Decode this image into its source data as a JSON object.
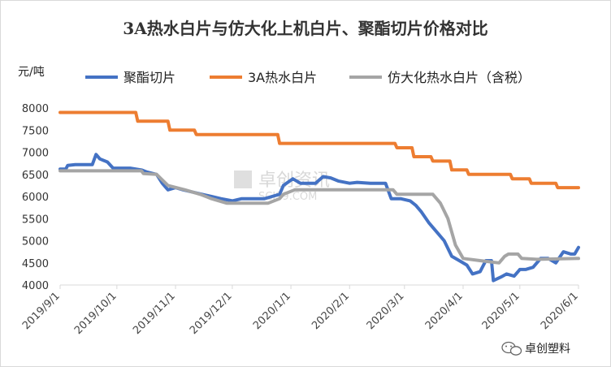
{
  "chart_data": {
    "type": "line",
    "title": "3A热水白片与仿大化上机白片、聚酯切片价格对比",
    "ylabel": "元/吨",
    "ylim": [
      4000,
      8000
    ],
    "yticks": [
      "8000",
      "7500",
      "7000",
      "6500",
      "6000",
      "5500",
      "5000",
      "4500",
      "4000"
    ],
    "xlim": [
      "2019-09-01",
      "2020-06-01"
    ],
    "xticks": [
      "2019/9/1",
      "2019/10/1",
      "2019/11/1",
      "2019/12/1",
      "2020/1/1",
      "2020/2/1",
      "2020/3/1",
      "2020/4/1",
      "2020/5/1",
      "2020/6/1"
    ],
    "grid": false,
    "legend": "top",
    "series": [
      {
        "name": "聚酯切片",
        "color": "#4472C4",
        "points": [
          [
            "2019-09-01",
            6620
          ],
          [
            "2019-09-04",
            6620
          ],
          [
            "2019-09-05",
            6700
          ],
          [
            "2019-09-09",
            6720
          ],
          [
            "2019-09-18",
            6720
          ],
          [
            "2019-09-20",
            6950
          ],
          [
            "2019-09-22",
            6850
          ],
          [
            "2019-09-26",
            6780
          ],
          [
            "2019-09-29",
            6640
          ],
          [
            "2019-10-08",
            6640
          ],
          [
            "2019-10-14",
            6600
          ],
          [
            "2019-10-17",
            6550
          ],
          [
            "2019-10-22",
            6500
          ],
          [
            "2019-10-25",
            6300
          ],
          [
            "2019-10-28",
            6150
          ],
          [
            "2019-11-01",
            6200
          ],
          [
            "2019-11-05",
            6150
          ],
          [
            "2019-11-10",
            6100
          ],
          [
            "2019-11-15",
            6050
          ],
          [
            "2019-11-20",
            6000
          ],
          [
            "2019-11-25",
            5950
          ],
          [
            "2019-12-01",
            5900
          ],
          [
            "2019-12-06",
            5950
          ],
          [
            "2019-12-10",
            5950
          ],
          [
            "2019-12-18",
            5950
          ],
          [
            "2019-12-22",
            6000
          ],
          [
            "2019-12-26",
            6050
          ],
          [
            "2019-12-28",
            6250
          ],
          [
            "2020-01-02",
            6400
          ],
          [
            "2020-01-06",
            6300
          ],
          [
            "2020-01-14",
            6300
          ],
          [
            "2020-01-18",
            6450
          ],
          [
            "2020-01-22",
            6420
          ],
          [
            "2020-01-26",
            6350
          ],
          [
            "2020-02-01",
            6300
          ],
          [
            "2020-02-05",
            6320
          ],
          [
            "2020-02-12",
            6300
          ],
          [
            "2020-02-20",
            6300
          ],
          [
            "2020-02-23",
            5950
          ],
          [
            "2020-02-28",
            5950
          ],
          [
            "2020-03-04",
            5900
          ],
          [
            "2020-03-07",
            5800
          ],
          [
            "2020-03-10",
            5650
          ],
          [
            "2020-03-14",
            5400
          ],
          [
            "2020-03-18",
            5200
          ],
          [
            "2020-03-22",
            5000
          ],
          [
            "2020-03-26",
            4650
          ],
          [
            "2020-03-30",
            4550
          ],
          [
            "2020-04-03",
            4450
          ],
          [
            "2020-04-06",
            4250
          ],
          [
            "2020-04-10",
            4300
          ],
          [
            "2020-04-13",
            4550
          ],
          [
            "2020-04-16",
            4550
          ],
          [
            "2020-04-17",
            4100
          ],
          [
            "2020-04-21",
            4180
          ],
          [
            "2020-04-24",
            4250
          ],
          [
            "2020-04-28",
            4200
          ],
          [
            "2020-05-01",
            4350
          ],
          [
            "2020-05-04",
            4350
          ],
          [
            "2020-05-08",
            4400
          ],
          [
            "2020-05-12",
            4600
          ],
          [
            "2020-05-16",
            4600
          ],
          [
            "2020-05-20",
            4500
          ],
          [
            "2020-05-24",
            4750
          ],
          [
            "2020-05-28",
            4700
          ],
          [
            "2020-05-30",
            4700
          ],
          [
            "2020-06-01",
            4850
          ]
        ]
      },
      {
        "name": "3A热水白片",
        "color": "#ED7D31",
        "points": [
          [
            "2019-09-01",
            7900
          ],
          [
            "2019-10-11",
            7900
          ],
          [
            "2019-10-12",
            7700
          ],
          [
            "2019-10-28",
            7700
          ],
          [
            "2019-10-29",
            7500
          ],
          [
            "2019-11-11",
            7500
          ],
          [
            "2019-11-12",
            7400
          ],
          [
            "2019-12-25",
            7400
          ],
          [
            "2019-12-26",
            7200
          ],
          [
            "2020-02-25",
            7200
          ],
          [
            "2020-02-26",
            7100
          ],
          [
            "2020-03-05",
            7100
          ],
          [
            "2020-03-06",
            6900
          ],
          [
            "2020-03-15",
            6900
          ],
          [
            "2020-03-16",
            6800
          ],
          [
            "2020-03-25",
            6800
          ],
          [
            "2020-03-26",
            6600
          ],
          [
            "2020-04-03",
            6600
          ],
          [
            "2020-04-04",
            6500
          ],
          [
            "2020-04-26",
            6500
          ],
          [
            "2020-04-27",
            6400
          ],
          [
            "2020-05-06",
            6400
          ],
          [
            "2020-05-07",
            6300
          ],
          [
            "2020-05-20",
            6300
          ],
          [
            "2020-05-21",
            6200
          ],
          [
            "2020-06-01",
            6200
          ]
        ]
      },
      {
        "name": "仿大化热水白片（含税）",
        "color": "#A5A5A5",
        "points": [
          [
            "2019-09-01",
            6580
          ],
          [
            "2019-10-14",
            6580
          ],
          [
            "2019-10-15",
            6520
          ],
          [
            "2019-10-22",
            6500
          ],
          [
            "2019-10-28",
            6250
          ],
          [
            "2019-11-06",
            6150
          ],
          [
            "2019-11-14",
            6050
          ],
          [
            "2019-11-20",
            5950
          ],
          [
            "2019-11-28",
            5850
          ],
          [
            "2019-12-20",
            5850
          ],
          [
            "2019-12-26",
            5950
          ],
          [
            "2019-12-28",
            6050
          ],
          [
            "2020-01-03",
            6150
          ],
          [
            "2020-02-24",
            6150
          ],
          [
            "2020-02-26",
            6050
          ],
          [
            "2020-03-16",
            6050
          ],
          [
            "2020-03-20",
            5850
          ],
          [
            "2020-03-24",
            5500
          ],
          [
            "2020-03-28",
            4900
          ],
          [
            "2020-04-01",
            4600
          ],
          [
            "2020-04-10",
            4550
          ],
          [
            "2020-04-20",
            4500
          ],
          [
            "2020-04-23",
            4650
          ],
          [
            "2020-04-25",
            4700
          ],
          [
            "2020-04-30",
            4700
          ],
          [
            "2020-05-02",
            4600
          ],
          [
            "2020-05-10",
            4580
          ],
          [
            "2020-06-01",
            4600
          ]
        ]
      }
    ]
  },
  "watermark": {
    "main": "卓创资讯",
    "sub": "SCI99.COM"
  },
  "brand": {
    "label": "卓创塑料",
    "icon": "wechat-icon"
  }
}
